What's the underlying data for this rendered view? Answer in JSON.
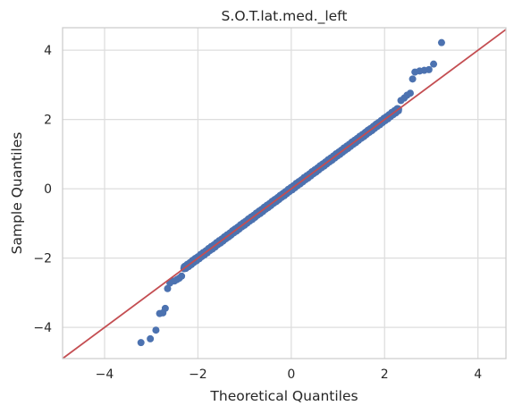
{
  "chart_data": {
    "type": "scatter",
    "title": "S.O.T.lat.med._left",
    "xlabel": "Theoretical Quantiles",
    "ylabel": "Sample Quantiles",
    "xlim": [
      -4.9,
      4.6
    ],
    "ylim": [
      -4.9,
      4.65
    ],
    "xticks": [
      -4,
      -2,
      0,
      2,
      4
    ],
    "yticks": [
      -4,
      -2,
      0,
      2,
      4
    ],
    "xtick_labels": [
      "−4",
      "−2",
      "0",
      "2",
      "4"
    ],
    "ytick_labels": [
      "−4",
      "−2",
      "0",
      "2",
      "4"
    ],
    "grid": true,
    "reference_line": {
      "slope": 1,
      "intercept": 0,
      "color": "#c44e52"
    },
    "marker_color": "#4c72b0",
    "n_body_points": 1200,
    "body_range": [
      -2.3,
      2.3
    ],
    "tail_points": [
      {
        "x": -3.22,
        "y": -4.44
      },
      {
        "x": -3.02,
        "y": -4.33
      },
      {
        "x": -2.9,
        "y": -4.08
      },
      {
        "x": -2.82,
        "y": -3.6
      },
      {
        "x": -2.75,
        "y": -3.58
      },
      {
        "x": -2.7,
        "y": -3.45
      },
      {
        "x": -2.65,
        "y": -2.88
      },
      {
        "x": -2.6,
        "y": -2.72
      },
      {
        "x": -2.55,
        "y": -2.66
      },
      {
        "x": -2.5,
        "y": -2.66
      },
      {
        "x": -2.45,
        "y": -2.62
      },
      {
        "x": -2.4,
        "y": -2.58
      },
      {
        "x": -2.35,
        "y": -2.52
      },
      {
        "x": 2.35,
        "y": 2.55
      },
      {
        "x": 2.42,
        "y": 2.62
      },
      {
        "x": 2.48,
        "y": 2.7
      },
      {
        "x": 2.55,
        "y": 2.76
      },
      {
        "x": 2.6,
        "y": 3.17
      },
      {
        "x": 2.65,
        "y": 3.37
      },
      {
        "x": 2.75,
        "y": 3.4
      },
      {
        "x": 2.85,
        "y": 3.42
      },
      {
        "x": 2.95,
        "y": 3.44
      },
      {
        "x": 3.05,
        "y": 3.6
      },
      {
        "x": 3.22,
        "y": 4.22
      }
    ]
  }
}
